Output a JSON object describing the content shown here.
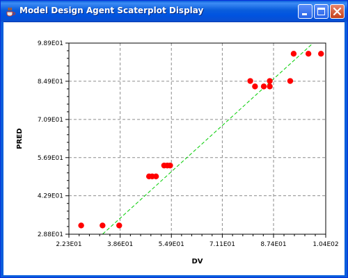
{
  "window": {
    "title": "Model Design Agent Scaterplot Display",
    "controls": [
      "minimize",
      "maximize",
      "close"
    ],
    "app_icon": "java-cup-icon"
  },
  "chart_data": {
    "type": "scatter",
    "xlabel": "DV",
    "ylabel": "PRED",
    "xlim": [
      22.3,
      104
    ],
    "ylim": [
      28.8,
      98.9
    ],
    "x_ticks": [
      "2.23E01",
      "3.86E01",
      "5.49E01",
      "7.11E01",
      "8.74E01",
      "1.04E02"
    ],
    "y_ticks": [
      "2.88E01",
      "4.29E01",
      "5.69E01",
      "7.09E01",
      "8.49E01",
      "9.89E01"
    ],
    "x_tick_values": [
      22.3,
      38.6,
      54.9,
      71.1,
      87.4,
      104
    ],
    "y_tick_values": [
      28.8,
      42.9,
      56.9,
      70.9,
      84.9,
      98.9
    ],
    "grid": true,
    "series": [
      {
        "color": "#ff0000",
        "points": [
          [
            26.2,
            32.0
          ],
          [
            33.0,
            32.0
          ],
          [
            38.3,
            32.0
          ],
          [
            47.8,
            50.0
          ],
          [
            48.8,
            50.0
          ],
          [
            50.0,
            50.0
          ],
          [
            52.6,
            54.0
          ],
          [
            53.6,
            54.0
          ],
          [
            54.5,
            54.0
          ],
          [
            80.0,
            85.0
          ],
          [
            81.5,
            83.0
          ],
          [
            84.3,
            83.0
          ],
          [
            86.2,
            83.0
          ],
          [
            86.2,
            85.0
          ],
          [
            92.7,
            85.0
          ],
          [
            93.8,
            95.0
          ],
          [
            98.5,
            95.0
          ],
          [
            102.5,
            95.0
          ]
        ]
      }
    ],
    "fit_line": {
      "color": "#00cc00",
      "style": "dashed",
      "start": [
        26.5,
        22.0
      ],
      "end": [
        101.5,
        100.5
      ]
    }
  }
}
